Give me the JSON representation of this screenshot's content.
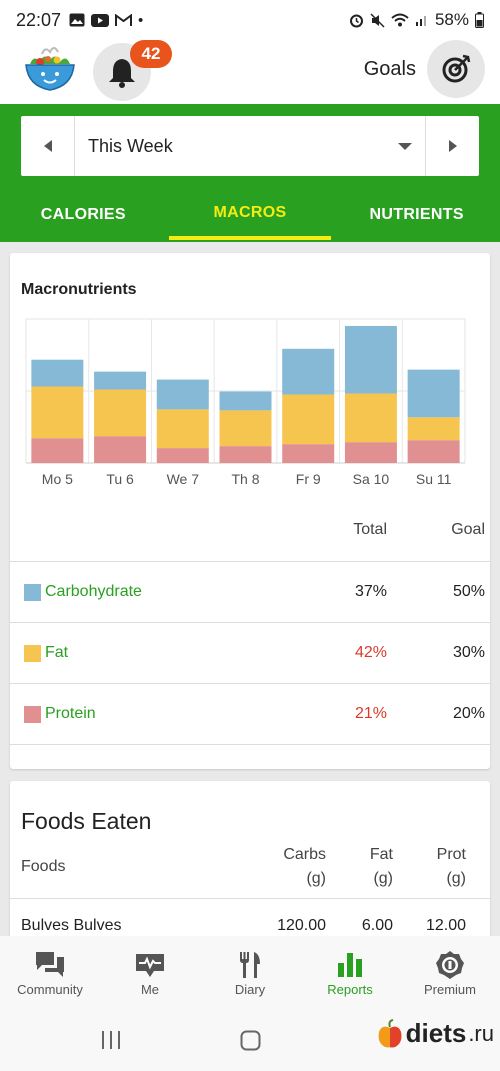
{
  "status_bar": {
    "time": "22:07",
    "battery": "58%"
  },
  "header": {
    "notification_count": "42",
    "goals_label": "Goals"
  },
  "week_selector": {
    "label": "This Week"
  },
  "tabs": [
    {
      "label": "CALORIES",
      "active": false
    },
    {
      "label": "MACROS",
      "active": true
    },
    {
      "label": "NUTRIENTS",
      "active": false
    }
  ],
  "macros_card": {
    "title": "Macronutrients",
    "col_total": "Total",
    "col_goal": "Goal",
    "rows": [
      {
        "name": "Carbohydrate",
        "total": "37%",
        "goal": "50%",
        "color": "#85b9d6",
        "total_color": "#222222"
      },
      {
        "name": "Fat",
        "total": "42%",
        "goal": "30%",
        "color": "#f6c550",
        "total_color": "#d93a2b"
      },
      {
        "name": "Protein",
        "total": "21%",
        "goal": "20%",
        "color": "#e09090",
        "total_color": "#d93a2b"
      }
    ]
  },
  "chart_data": {
    "type": "bar",
    "stacked": true,
    "categories": [
      "Mo 5",
      "Tu 6",
      "We 7",
      "Th 8",
      "Fr 9",
      "Sa 10",
      "Su 11"
    ],
    "series": [
      {
        "name": "Protein",
        "color": "#e09090",
        "values": [
          25,
          27,
          15,
          17,
          19,
          21,
          23
        ]
      },
      {
        "name": "Fat",
        "color": "#f6c550",
        "values": [
          52,
          47,
          39,
          36,
          50,
          49,
          23
        ]
      },
      {
        "name": "Carbohydrate",
        "color": "#85b9d6",
        "values": [
          27,
          18,
          30,
          19,
          46,
          68,
          48
        ]
      }
    ],
    "ylim": [
      0,
      145
    ],
    "grid": true
  },
  "foods_card": {
    "title": "Foods Eaten",
    "headers": {
      "foods": "Foods",
      "carbs": "Carbs",
      "carbs_unit": "(g)",
      "fat": "Fat",
      "fat_unit": "(g)",
      "prot": "Prot",
      "prot_unit": "(g)"
    },
    "rows": [
      {
        "name": "Bulves Bulves",
        "carbs": "120.00",
        "fat": "6.00",
        "prot": "12.00"
      }
    ]
  },
  "bottom_nav": [
    {
      "label": "Community",
      "icon": "chat-icon",
      "active": false
    },
    {
      "label": "Me",
      "icon": "heart-pulse-icon",
      "active": false
    },
    {
      "label": "Diary",
      "icon": "fork-knife-icon",
      "active": false
    },
    {
      "label": "Reports",
      "icon": "bar-chart-icon",
      "active": true
    },
    {
      "label": "Premium",
      "icon": "medal-icon",
      "active": false
    }
  ],
  "watermark": {
    "brand": "diets",
    "tld": ".ru"
  }
}
